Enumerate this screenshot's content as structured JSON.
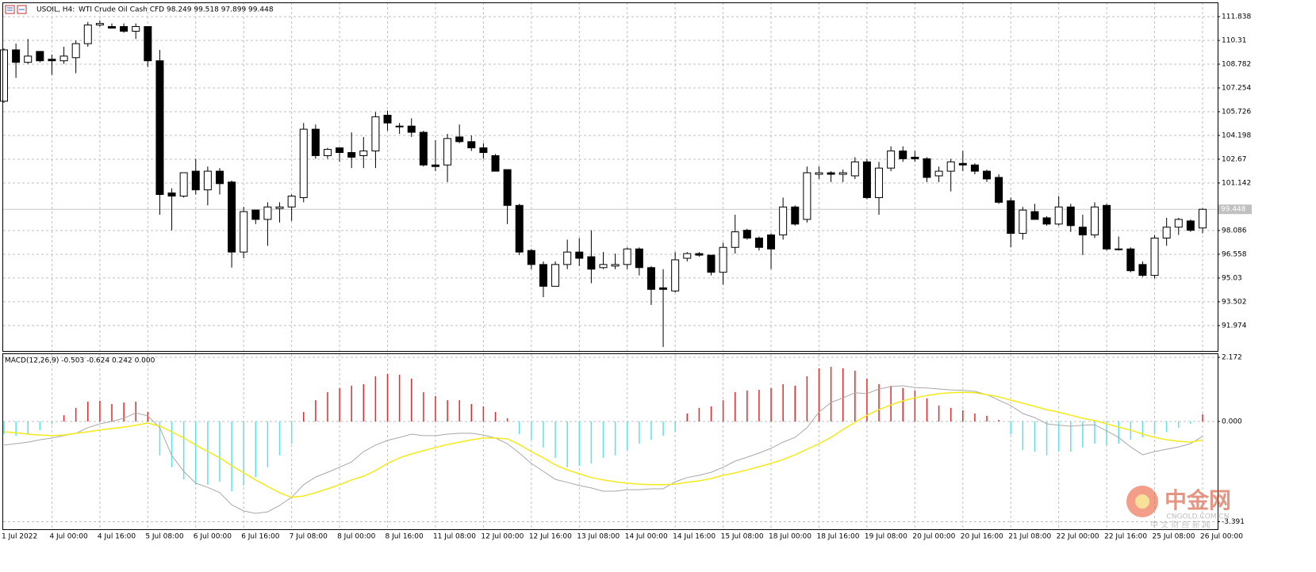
{
  "chart_data": [
    {
      "type": "candlestick",
      "title": "USOIL, H4:",
      "subtitle": "WTI Crude Oil Cash CFD",
      "ohlc_label": "98.249 99.518 97.899 99.448",
      "categories": [
        "1 Jul 2022",
        null,
        null,
        null,
        "4 Jul 00:00",
        null,
        null,
        null,
        "4 Jul 16:00",
        null,
        null,
        null,
        "5 Jul 08:00",
        null,
        null,
        null,
        "6 Jul 00:00",
        null,
        null,
        null,
        "6 Jul 16:00",
        null,
        null,
        null,
        "7 Jul 08:00",
        null,
        null,
        null,
        "8 Jul 00:00",
        null,
        null,
        null,
        "8 Jul 16:00",
        null,
        null,
        null,
        "11 Jul 08:00",
        null,
        null,
        null,
        "12 Jul 00:00",
        null,
        null,
        null,
        "12 Jul 16:00",
        null,
        null,
        null,
        "13 Jul 08:00",
        null,
        null,
        null,
        "14 Jul 00:00",
        null,
        null,
        null,
        "14 Jul 16:00",
        null,
        null,
        null,
        "15 Jul 08:00",
        null,
        null,
        null,
        "18 Jul 00:00",
        null,
        null,
        null,
        "18 Jul 16:00",
        null,
        null,
        null,
        "19 Jul 08:00",
        null,
        null,
        null,
        "20 Jul 00:00",
        null,
        null,
        null,
        "20 Jul 16:00",
        null,
        null,
        null,
        "21 Jul 08:00",
        null,
        null,
        null,
        "22 Jul 00:00",
        null,
        null,
        null,
        "22 Jul 16:00",
        null,
        null,
        null,
        "25 Jul 08:00",
        null,
        null,
        null,
        "26 Jul 00:00"
      ],
      "open": [
        106.4,
        109.7,
        108.9,
        109.6,
        109.1,
        109.0,
        109.2,
        110.1,
        111.3,
        111.2,
        111.2,
        110.9,
        111.2,
        109.0,
        100.5,
        100.3,
        101.9,
        100.7,
        101.9,
        101.2,
        96.7,
        99.4,
        98.8,
        99.5,
        99.6,
        100.2,
        104.6,
        102.9,
        103.4,
        103.1,
        102.9,
        103.2,
        105.5,
        104.8,
        104.8,
        104.4,
        102.3,
        102.3,
        104.1,
        103.8,
        103.4,
        102.9,
        102.0,
        99.7,
        96.8,
        95.9,
        94.5,
        95.9,
        96.7,
        96.4,
        95.7,
        95.8,
        95.9,
        96.9,
        95.7,
        94.4,
        94.2,
        96.3,
        96.6,
        96.5,
        95.4,
        97.0,
        98.1,
        97.6,
        97.8,
        97.8,
        99.6,
        98.8,
        101.7,
        101.8,
        101.7,
        101.6,
        102.5,
        100.2,
        102.1,
        103.2,
        102.8,
        102.7,
        101.6,
        101.9,
        102.4,
        102.3,
        101.9,
        101.5,
        100.0,
        97.9,
        99.3,
        98.9,
        98.5,
        99.6,
        98.3,
        97.8,
        99.7,
        96.9,
        96.9,
        95.9,
        95.2,
        97.6,
        98.3,
        98.7,
        98.249
      ],
      "high": [
        109.8,
        110.1,
        110.4,
        109.6,
        109.4,
        109.9,
        110.3,
        111.5,
        111.6,
        111.4,
        111.4,
        111.4,
        111.2,
        109.7,
        100.8,
        101.8,
        102.7,
        102.2,
        102.1,
        101.3,
        99.6,
        99.4,
        99.9,
        99.9,
        100.4,
        105.0,
        104.9,
        103.4,
        103.4,
        104.4,
        104.1,
        105.7,
        105.8,
        105.0,
        105.3,
        104.5,
        103.9,
        104.3,
        104.9,
        104.2,
        103.7,
        103.0,
        102.0,
        99.8,
        96.9,
        96.1,
        96.1,
        97.5,
        97.6,
        98.1,
        96.7,
        96.6,
        97.0,
        97.0,
        95.8,
        95.6,
        96.7,
        96.7,
        96.7,
        96.5,
        97.3,
        99.1,
        98.2,
        97.7,
        97.9,
        100.2,
        99.7,
        102.2,
        102.2,
        101.9,
        102.0,
        102.8,
        102.7,
        102.5,
        103.5,
        103.5,
        103.2,
        102.8,
        102.2,
        102.7,
        103.2,
        102.4,
        102.0,
        101.7,
        100.2,
        99.6,
        99.8,
        99.0,
        100.3,
        99.8,
        99.1,
        99.9,
        99.8,
        97.7,
        97.0,
        96.1,
        97.8,
        98.9,
        98.9,
        98.8,
        99.518
      ],
      "low": [
        106.3,
        107.9,
        108.8,
        108.9,
        108.1,
        108.8,
        108.2,
        109.9,
        111.2,
        111.1,
        110.8,
        110.4,
        108.6,
        99.1,
        98.1,
        100.2,
        100.4,
        99.7,
        100.4,
        95.7,
        96.3,
        98.5,
        97.1,
        98.6,
        98.7,
        99.9,
        102.7,
        102.7,
        102.5,
        102.1,
        102.1,
        102.1,
        104.5,
        104.3,
        104.1,
        102.2,
        101.9,
        101.2,
        103.7,
        103.2,
        102.7,
        101.9,
        98.5,
        96.5,
        95.6,
        93.8,
        94.5,
        95.6,
        95.8,
        94.7,
        95.6,
        95.6,
        95.6,
        95.2,
        93.3,
        90.6,
        94.1,
        96.1,
        96.4,
        95.2,
        94.6,
        96.6,
        97.5,
        96.8,
        95.6,
        97.5,
        98.4,
        98.6,
        101.4,
        101.2,
        101.2,
        101.4,
        100.1,
        99.1,
        101.9,
        102.5,
        102.5,
        101.2,
        101.2,
        100.6,
        101.9,
        101.7,
        101.2,
        99.8,
        97.0,
        97.5,
        98.8,
        98.4,
        98.4,
        98.0,
        96.5,
        97.6,
        96.8,
        96.8,
        95.4,
        95.1,
        95.0,
        97.1,
        97.8,
        98.0,
        97.899
      ],
      "close": [
        109.7,
        108.9,
        109.3,
        109.0,
        109.0,
        109.3,
        110.1,
        111.3,
        111.4,
        111.1,
        110.9,
        111.2,
        109.0,
        100.4,
        100.3,
        101.8,
        100.7,
        101.9,
        101.1,
        96.7,
        99.3,
        98.8,
        99.6,
        99.6,
        100.3,
        104.6,
        102.9,
        103.3,
        103.1,
        102.8,
        103.2,
        105.4,
        105.0,
        104.8,
        104.4,
        102.3,
        102.2,
        104.0,
        103.8,
        103.4,
        103.1,
        101.9,
        99.7,
        96.7,
        95.9,
        94.5,
        95.9,
        96.7,
        96.3,
        95.6,
        95.9,
        95.9,
        96.9,
        95.7,
        94.3,
        94.3,
        96.2,
        96.6,
        96.5,
        95.4,
        97.0,
        98.0,
        97.6,
        97.0,
        96.9,
        99.6,
        98.5,
        101.8,
        101.8,
        101.7,
        101.8,
        102.5,
        100.2,
        102.1,
        103.2,
        102.7,
        102.7,
        101.5,
        101.9,
        102.5,
        102.3,
        101.9,
        101.4,
        99.9,
        97.9,
        99.4,
        98.8,
        98.5,
        99.6,
        98.4,
        97.8,
        99.6,
        96.9,
        96.9,
        95.5,
        95.2,
        97.6,
        98.3,
        98.8,
        98.1,
        99.448
      ],
      "up_color": "#ffffff",
      "down_color": "#000000",
      "ylim": [
        90.34,
        112.755
      ],
      "yticks": [
        111.838,
        110.31,
        108.782,
        107.254,
        105.726,
        104.198,
        102.67,
        101.142,
        98.086,
        96.558,
        95.03,
        93.502,
        91.974
      ],
      "last_price": 99.448,
      "grid": true
    },
    {
      "type": "macd",
      "title": "MACD(12,26,9) -0.503 -0.624 0.242 0.000",
      "histogram": {
        "positive_color": "#e8282a",
        "negative_color": "#5fe0e8",
        "values": [
          -0.43,
          -0.48,
          -0.43,
          -0.29,
          -0.1,
          0.21,
          0.46,
          0.67,
          0.7,
          0.59,
          0.64,
          0.67,
          0.32,
          -1.15,
          -1.55,
          -1.96,
          -2.14,
          -2.14,
          -2.04,
          -2.36,
          -2.17,
          -1.88,
          -1.55,
          -1.15,
          -0.75,
          0.32,
          0.72,
          0.99,
          1.13,
          1.21,
          1.26,
          1.53,
          1.61,
          1.58,
          1.45,
          0.99,
          0.86,
          0.72,
          0.72,
          0.59,
          0.51,
          0.32,
          0.11,
          -0.43,
          -0.62,
          -0.88,
          -1.23,
          -1.55,
          -1.5,
          -1.42,
          -1.23,
          -1.15,
          -0.97,
          -0.75,
          -0.62,
          -0.48,
          -0.35,
          0.27,
          0.46,
          0.51,
          0.72,
          0.99,
          1.05,
          1.07,
          1.13,
          1.26,
          1.21,
          1.53,
          1.8,
          1.85,
          1.8,
          1.72,
          1.45,
          1.26,
          1.21,
          1.13,
          1.05,
          0.78,
          0.54,
          0.46,
          0.38,
          0.27,
          0.19,
          0.05,
          -0.43,
          -0.97,
          -1.02,
          -1.15,
          -1.02,
          -1.02,
          -0.88,
          -0.75,
          -0.8,
          -0.75,
          -0.62,
          -0.54,
          -0.43,
          -0.35,
          -0.21,
          -0.08,
          0.24
        ]
      },
      "series": [
        {
          "color": "#a8a8a8",
          "values": [
            -0.8,
            -0.75,
            -0.7,
            -0.62,
            -0.56,
            -0.48,
            -0.4,
            -0.21,
            -0.08,
            0,
            0.11,
            0.29,
            0.19,
            -0.21,
            -1.15,
            -1.69,
            -2.09,
            -2.23,
            -2.41,
            -2.82,
            -3.03,
            -3.11,
            -3.06,
            -2.84,
            -2.57,
            -2.14,
            -1.88,
            -1.72,
            -1.55,
            -1.37,
            -1.02,
            -0.8,
            -0.64,
            -0.54,
            -0.43,
            -0.48,
            -0.48,
            -0.43,
            -0.4,
            -0.4,
            -0.46,
            -0.56,
            -0.75,
            -1.07,
            -1.42,
            -1.69,
            -1.96,
            -2.06,
            -2.17,
            -2.25,
            -2.36,
            -2.36,
            -2.31,
            -2.31,
            -2.28,
            -2.28,
            -2.04,
            -1.9,
            -1.82,
            -1.72,
            -1.55,
            -1.34,
            -1.21,
            -1.07,
            -0.91,
            -0.7,
            -0.54,
            -0.21,
            0.32,
            0.64,
            0.8,
            0.97,
            0.94,
            1.1,
            1.18,
            1.21,
            1.15,
            1.13,
            1.1,
            1.07,
            1.05,
            1.02,
            0.91,
            0.72,
            0.54,
            0.27,
            0.13,
            -0.08,
            -0.13,
            -0.16,
            -0.13,
            -0.11,
            -0.32,
            -0.54,
            -0.86,
            -1.13,
            -1.02,
            -0.94,
            -0.86,
            -0.75,
            -0.503
          ]
        },
        {
          "color": "#f2ea1a",
          "values": [
            -0.35,
            -0.38,
            -0.43,
            -0.46,
            -0.48,
            -0.46,
            -0.4,
            -0.35,
            -0.29,
            -0.24,
            -0.19,
            -0.13,
            -0.05,
            -0.16,
            -0.35,
            -0.56,
            -0.8,
            -1.02,
            -1.23,
            -1.5,
            -1.74,
            -1.98,
            -2.2,
            -2.41,
            -2.57,
            -2.52,
            -2.41,
            -2.28,
            -2.14,
            -1.98,
            -1.85,
            -1.66,
            -1.42,
            -1.23,
            -1.1,
            -0.99,
            -0.88,
            -0.78,
            -0.7,
            -0.62,
            -0.56,
            -0.56,
            -0.59,
            -0.78,
            -1.02,
            -1.23,
            -1.47,
            -1.64,
            -1.77,
            -1.9,
            -1.98,
            -2.04,
            -2.09,
            -2.12,
            -2.14,
            -2.14,
            -2.12,
            -2.06,
            -2.01,
            -1.93,
            -1.82,
            -1.74,
            -1.64,
            -1.53,
            -1.42,
            -1.29,
            -1.13,
            -0.94,
            -0.75,
            -0.54,
            -0.27,
            -0.03,
            0.21,
            0.4,
            0.56,
            0.7,
            0.8,
            0.88,
            0.94,
            0.97,
            0.99,
            0.97,
            0.91,
            0.83,
            0.72,
            0.62,
            0.51,
            0.4,
            0.32,
            0.21,
            0.11,
            0.03,
            -0.08,
            -0.19,
            -0.29,
            -0.43,
            -0.54,
            -0.62,
            -0.67,
            -0.7,
            -0.624
          ]
        }
      ],
      "ylim": [
        -3.647,
        2.279
      ],
      "yticks": [
        2.172,
        {
          "value": 0,
          "label": "0.000"
        },
        -3.391
      ],
      "grid": true
    }
  ],
  "watermark": {
    "brand": "中金网",
    "site": "CNGOLD.COM.CN",
    "tagline": "中 文 财 经 新 闻"
  }
}
